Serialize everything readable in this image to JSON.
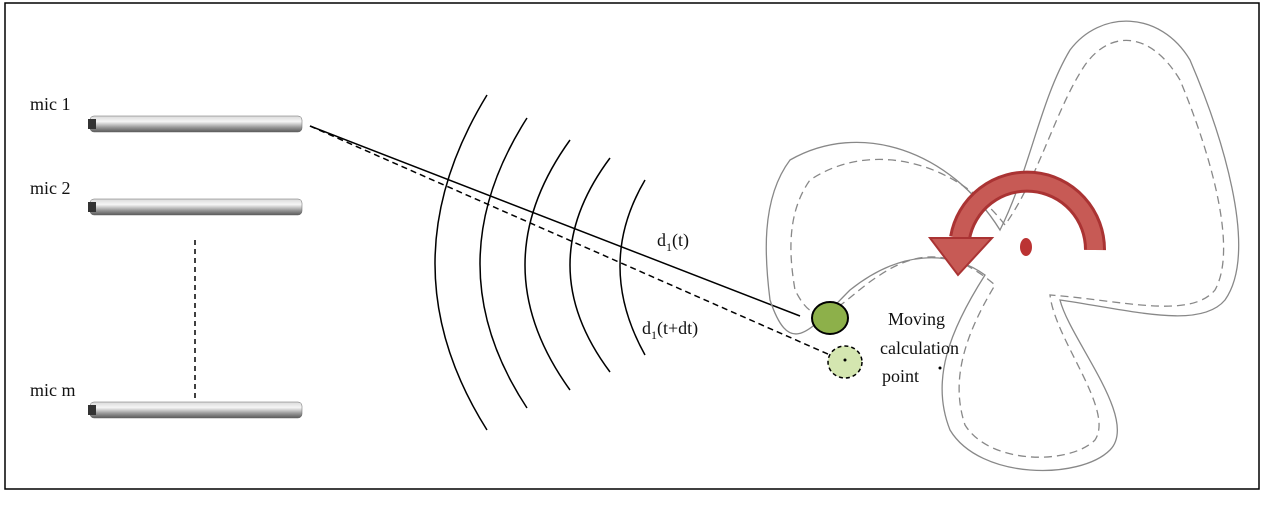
{
  "microphones": [
    {
      "label": "mic 1"
    },
    {
      "label": "mic 2"
    },
    {
      "label": "mic m"
    }
  ],
  "distances": [
    {
      "base": "d",
      "sub": "1",
      "arg": "(t)"
    },
    {
      "base": "d",
      "sub": "1",
      "arg": "(t+dt)"
    }
  ],
  "point_label": [
    "Moving",
    "calculation",
    "point"
  ]
}
